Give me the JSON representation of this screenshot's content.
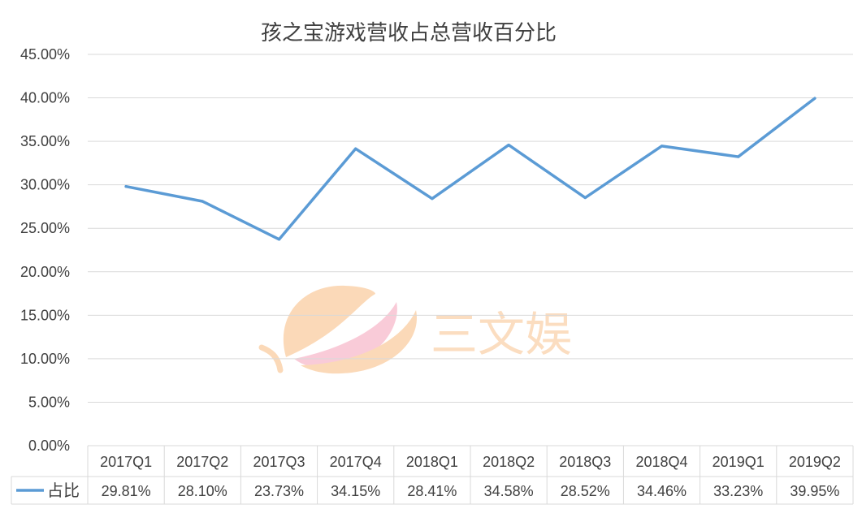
{
  "chart_data": {
    "type": "line",
    "title": "孩之宝游戏营收占总营收百分比",
    "categories": [
      "2017Q1",
      "2017Q2",
      "2017Q3",
      "2017Q4",
      "2018Q1",
      "2018Q2",
      "2018Q3",
      "2018Q4",
      "2019Q1",
      "2019Q2"
    ],
    "series": [
      {
        "name": "占比",
        "color": "#5b9bd5",
        "values": [
          29.81,
          28.1,
          23.73,
          34.15,
          28.41,
          34.58,
          28.52,
          34.46,
          33.23,
          39.95
        ],
        "labels": [
          "29.81%",
          "28.10%",
          "23.73%",
          "34.15%",
          "28.41%",
          "34.58%",
          "28.52%",
          "34.46%",
          "33.23%",
          "39.95%"
        ]
      }
    ],
    "yticks": [
      "0.00%",
      "5.00%",
      "10.00%",
      "15.00%",
      "20.00%",
      "25.00%",
      "30.00%",
      "35.00%",
      "40.00%",
      "45.00%"
    ],
    "ylim": [
      0,
      45
    ],
    "grid": true,
    "legend": "data-table-left"
  },
  "watermark": {
    "text": "三文娱",
    "colors": [
      "#fbd8b6",
      "#f8c6d3"
    ]
  }
}
